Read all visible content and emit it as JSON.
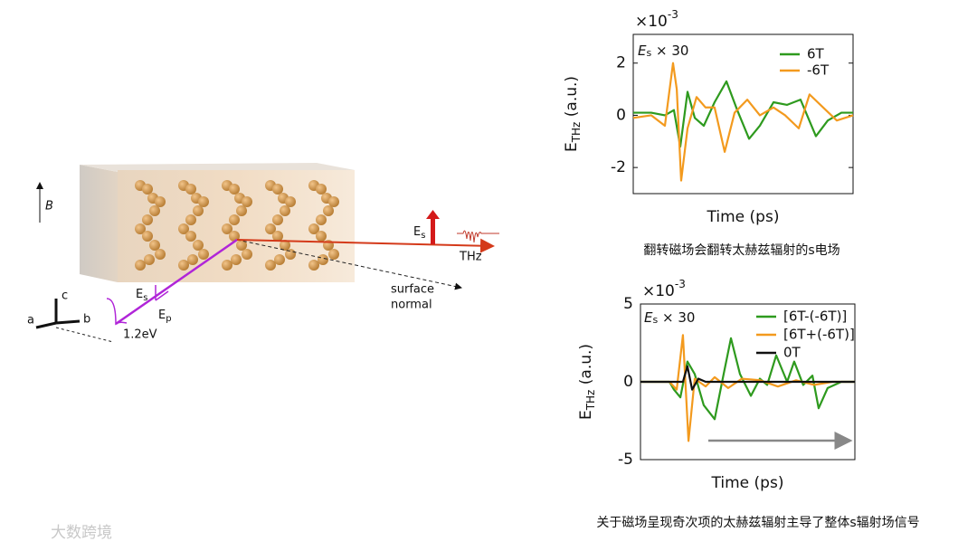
{
  "chart_data": [
    {
      "type": "line",
      "annotation": {
        "main": "E",
        "sub": "s",
        "rest": " × 30"
      },
      "y_label": {
        "main": "E",
        "sub": "THz",
        "rest": " (a.u.)"
      },
      "x_label": "Time (ps)",
      "y_scale": {
        "main": "×10",
        "sup": "-3"
      },
      "caption": "翻转磁场会翻转太赫兹辐射的s电场",
      "xlim": [
        0,
        10
      ],
      "ylim": [
        -3,
        3.1
      ],
      "yticks": [
        -2,
        0,
        2
      ],
      "series": [
        {
          "name": "6T",
          "color": "#2e9a1e",
          "x": [
            0,
            0.82,
            1.44,
            1.85,
            2.14,
            2.47,
            2.8,
            3.21,
            3.7,
            4.24,
            4.73,
            5.27,
            5.76,
            6.38,
            7.0,
            7.61,
            8.31,
            8.85,
            9.47,
            10
          ],
          "values": [
            0.1,
            0.1,
            0,
            0.2,
            -1.2,
            0.9,
            -0.1,
            -0.4,
            0.5,
            1.3,
            0.2,
            -0.9,
            -0.4,
            0.5,
            0.4,
            0.6,
            -0.8,
            -0.2,
            0.1,
            0.1
          ]
        },
        {
          "name": "-6T",
          "color": "#f39a1e",
          "x": [
            0,
            0.82,
            1.44,
            1.81,
            1.98,
            2.18,
            2.47,
            2.88,
            3.29,
            3.7,
            4.16,
            4.61,
            5.19,
            5.76,
            6.38,
            6.91,
            7.53,
            8.02,
            8.64,
            9.26,
            10
          ],
          "values": [
            -0.1,
            0,
            -0.4,
            2.0,
            1.0,
            -2.5,
            -0.5,
            0.7,
            0.3,
            0.3,
            -1.4,
            0.1,
            0.6,
            0,
            0.3,
            0,
            -0.5,
            0.8,
            0.3,
            -0.2,
            0
          ]
        }
      ]
    },
    {
      "type": "line",
      "annotation": {
        "main": "E",
        "sub": "s",
        "rest": " × 30"
      },
      "y_label": {
        "main": "E",
        "sub": "THz",
        "rest": " (a.u.)"
      },
      "x_label": "Time (ps)",
      "y_scale": {
        "main": "×10",
        "sup": "-3"
      },
      "caption": "关于磁场呈现奇次项的太赫兹辐射主导了整体s辐射场信号",
      "xlim": [
        0,
        10
      ],
      "ylim": [
        -5,
        5
      ],
      "yticks": [
        -5,
        0,
        5
      ],
      "series": [
        {
          "name": "[6T-(-6T)]",
          "color": "#2e9a1e",
          "x": [
            0,
            1.35,
            1.56,
            1.86,
            2.19,
            2.53,
            2.95,
            3.46,
            3.88,
            4.22,
            4.64,
            5.15,
            5.57,
            5.91,
            6.33,
            6.84,
            7.17,
            7.59,
            8.02,
            8.31,
            8.73,
            9.37,
            10
          ],
          "values": [
            0,
            0,
            -0.5,
            -1.0,
            1.3,
            0.5,
            -1.5,
            -2.4,
            0.5,
            2.8,
            0.5,
            -0.9,
            0.2,
            -0.2,
            1.7,
            0,
            1.3,
            -0.2,
            0.4,
            -1.7,
            -0.4,
            0,
            0
          ]
        },
        {
          "name": "[6T+(-6T)]",
          "color": "#f39a1e",
          "x": [
            0,
            1.35,
            1.69,
            1.98,
            2.24,
            2.53,
            3.04,
            3.46,
            4.09,
            4.73,
            5.57,
            6.41,
            7.26,
            8.1,
            8.95,
            10
          ],
          "values": [
            0,
            0,
            -0.5,
            3.0,
            -3.8,
            0.2,
            -0.3,
            0.3,
            -0.4,
            0.2,
            0.1,
            -0.3,
            0.1,
            -0.2,
            0,
            0
          ]
        },
        {
          "name": "0T",
          "color": "#111111",
          "x": [
            0,
            1.98,
            2.19,
            2.41,
            2.7,
            3.04,
            10
          ],
          "values": [
            0,
            0,
            1.0,
            -0.5,
            0.2,
            0,
            0
          ]
        }
      ]
    }
  ],
  "diagram": {
    "field": "B",
    "axis_c": "c",
    "axis_a": "a",
    "axis_b": "b",
    "es_main": "E",
    "es_sub": "s",
    "ep_main": "E",
    "ep_sub": "p",
    "pump": "1.2eV",
    "normal_1": "surface",
    "normal_2": "normal",
    "thz": "THz",
    "out_main": "E",
    "out_sub": "s"
  },
  "watermark": "大数跨境"
}
